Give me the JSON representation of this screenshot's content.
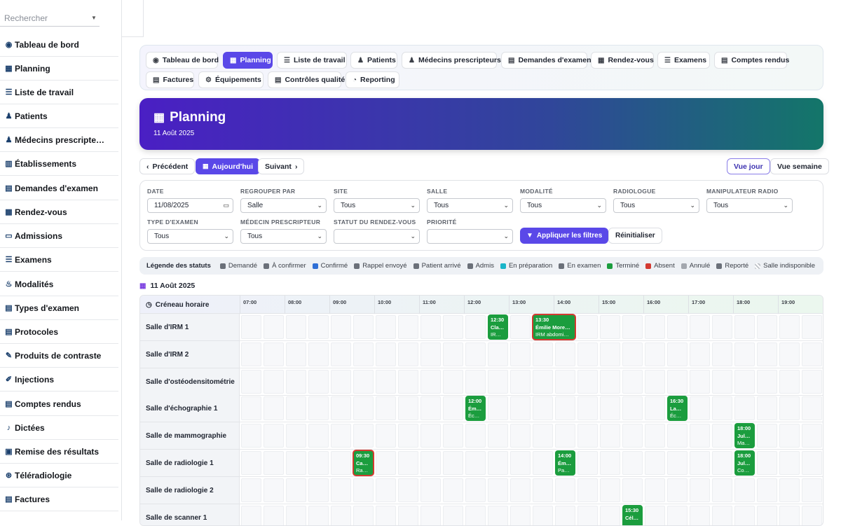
{
  "search": {
    "placeholder": "Rechercher"
  },
  "sidebar": {
    "items": [
      {
        "label": "Tableau de bord",
        "icon": "dashboard-icon",
        "glyph": "◉"
      },
      {
        "label": "Planning",
        "icon": "calendar-icon",
        "glyph": "▦"
      },
      {
        "label": "Liste de travail",
        "icon": "list-icon",
        "glyph": "☰"
      },
      {
        "label": "Patients",
        "icon": "patient-icon",
        "glyph": "♟"
      },
      {
        "label": "Médecins prescripte…",
        "icon": "doctors-icon",
        "glyph": "♟"
      },
      {
        "label": "Établissements",
        "icon": "building-icon",
        "glyph": "▥"
      },
      {
        "label": "Demandes d'examen",
        "icon": "request-icon",
        "glyph": "▤"
      },
      {
        "label": "Rendez-vous",
        "icon": "appointment-icon",
        "glyph": "▦"
      },
      {
        "label": "Admissions",
        "icon": "id-card-icon",
        "glyph": "▭"
      },
      {
        "label": "Examens",
        "icon": "exam-icon",
        "glyph": "☰"
      },
      {
        "label": "Modalités",
        "icon": "modality-icon",
        "glyph": "♨"
      },
      {
        "label": "Types d'examen",
        "icon": "clipboard-icon",
        "glyph": "▤"
      },
      {
        "label": "Protocoles",
        "icon": "protocol-icon",
        "glyph": "▤"
      },
      {
        "label": "Produits de contraste",
        "icon": "eyedropper-icon",
        "glyph": "✎"
      },
      {
        "label": "Injections",
        "icon": "syringe-icon",
        "glyph": "✐"
      },
      {
        "label": "Comptes rendus",
        "icon": "report-icon",
        "glyph": "▤"
      },
      {
        "label": "Dictées",
        "icon": "microphone-icon",
        "glyph": "♪"
      },
      {
        "label": "Remise des résultats",
        "icon": "printer-icon",
        "glyph": "▣"
      },
      {
        "label": "Téléradiologie",
        "icon": "broadcast-icon",
        "glyph": "⊛"
      },
      {
        "label": "Factures",
        "icon": "invoice-icon",
        "glyph": "▤"
      }
    ]
  },
  "nav": {
    "tabs": [
      {
        "label": "Tableau de bord",
        "icon": "dashboard-icon",
        "glyph": "◉"
      },
      {
        "label": "Planning",
        "icon": "calendar-icon",
        "glyph": "▦",
        "active": true
      },
      {
        "label": "Liste de travail",
        "icon": "list-icon",
        "glyph": "☰"
      },
      {
        "label": "Patients",
        "icon": "patient-icon",
        "glyph": "♟"
      },
      {
        "label": "Médecins prescripteurs",
        "icon": "doctors-icon",
        "glyph": "♟"
      },
      {
        "label": "Demandes d'examen",
        "icon": "request-icon",
        "glyph": "▤"
      },
      {
        "label": "Rendez-vous",
        "icon": "appointment-icon",
        "glyph": "▦"
      },
      {
        "label": "Examens",
        "icon": "exam-icon",
        "glyph": "☰"
      },
      {
        "label": "Comptes rendus",
        "icon": "report-icon",
        "glyph": "▤"
      },
      {
        "label": "Factures",
        "icon": "invoice-icon",
        "glyph": "▤"
      },
      {
        "label": "Équipements",
        "icon": "gears-icon",
        "glyph": "⚙"
      },
      {
        "label": "Contrôles qualité",
        "icon": "clipboard-check-icon",
        "glyph": "▤"
      },
      {
        "label": "Reporting",
        "icon": "pie-chart-icon",
        "glyph": "◔"
      }
    ]
  },
  "hero": {
    "title": "Planning",
    "subtitle": "11 Août 2025",
    "gradient_start": "#4a1fc4",
    "gradient_end": "#137669"
  },
  "pager": {
    "prev": "Précédent",
    "today": "Aujourd'hui",
    "next": "Suivant",
    "day_view": "Vue jour",
    "week_view": "Vue semaine"
  },
  "filters": {
    "date": {
      "label": "DATE",
      "value": "11/08/2025"
    },
    "group_by": {
      "label": "REGROUPER PAR",
      "value": "Salle"
    },
    "site": {
      "label": "SITE",
      "value": "Tous"
    },
    "room": {
      "label": "SALLE",
      "value": "Tous"
    },
    "modality": {
      "label": "MODALITÉ",
      "value": "Tous"
    },
    "radiologist": {
      "label": "RADIOLOGUE",
      "value": "Tous"
    },
    "technician": {
      "label": "MANIPULATEUR RADIO",
      "value": "Tous"
    },
    "exam_type": {
      "label": "TYPE D'EXAMEN",
      "value": "Tous"
    },
    "prescriber": {
      "label": "MÉDECIN PRESCRIPTEUR",
      "value": "Tous"
    },
    "status": {
      "label": "STATUT DU RENDEZ-VOUS",
      "value": ""
    },
    "priority": {
      "label": "PRIORITÉ",
      "value": ""
    },
    "apply": "Appliquer les filtres",
    "reset": "Réinitialiser"
  },
  "legend": {
    "title": "Légende des statuts",
    "items": [
      {
        "label": "Demandé",
        "color": "#6b7079"
      },
      {
        "label": "À confirmer",
        "color": "#6b7079"
      },
      {
        "label": "Confirmé",
        "color": "#2f6fd6"
      },
      {
        "label": "Rappel envoyé",
        "color": "#6b7079"
      },
      {
        "label": "Patient arrivé",
        "color": "#6b7079"
      },
      {
        "label": "Admis",
        "color": "#6b7079"
      },
      {
        "label": "En préparation",
        "color": "#19b5c9"
      },
      {
        "label": "En examen",
        "color": "#6b7079"
      },
      {
        "label": "Terminé",
        "color": "#1b9d3e"
      },
      {
        "label": "Absent",
        "color": "#d33a31"
      },
      {
        "label": "Annulé",
        "color": "#a3a7ae"
      },
      {
        "label": "Reporté",
        "color": "#6b7079"
      },
      {
        "label": "Salle indisponible",
        "color": "#cfd2d7"
      }
    ]
  },
  "planning": {
    "date_header": "11 Août 2025",
    "corner": "Créneau horaire",
    "hours": [
      "07:00",
      "08:00",
      "09:00",
      "10:00",
      "11:00",
      "12:00",
      "13:00",
      "14:00",
      "15:00",
      "16:00",
      "17:00",
      "18:00",
      "19:00"
    ],
    "rooms": [
      "Salle d'IRM 1",
      "Salle d'IRM 2",
      "Salle d'ostéodensitométrie",
      "Salle d'échographie 1",
      "Salle de mammographie",
      "Salle de radiologie 1",
      "Salle de radiologie 2",
      "Salle de scanner 1"
    ],
    "appointments": [
      {
        "room": 0,
        "start": 12.5,
        "slots": 1,
        "time": "12:30",
        "name": "Cla…",
        "exam": "IR…",
        "status": "Terminé"
      },
      {
        "room": 0,
        "start": 13.5,
        "slots": 2,
        "time": "13:30",
        "name": "Émilie More…",
        "exam": "IRM abdomi…",
        "status": "Absent"
      },
      {
        "room": 3,
        "start": 12.0,
        "slots": 1,
        "time": "12:00",
        "name": "Ém…",
        "exam": "Éc…",
        "status": "Terminé"
      },
      {
        "room": 3,
        "start": 16.5,
        "slots": 1,
        "time": "16:30",
        "name": "La…",
        "exam": "Éc…",
        "status": "Terminé"
      },
      {
        "room": 4,
        "start": 18.0,
        "slots": 1,
        "time": "18:00",
        "name": "Jul…",
        "exam": "Ma…",
        "status": "Terminé"
      },
      {
        "room": 5,
        "start": 9.5,
        "slots": 1,
        "time": "09:30",
        "name": "Ca…",
        "exam": "Ra…",
        "status": "Absent"
      },
      {
        "room": 5,
        "start": 14.0,
        "slots": 1,
        "time": "14:00",
        "name": "Ém…",
        "exam": "Pa…",
        "status": "Terminé"
      },
      {
        "room": 5,
        "start": 18.0,
        "slots": 1,
        "time": "18:00",
        "name": "Jul…",
        "exam": "Co…",
        "status": "Terminé"
      },
      {
        "room": 7,
        "start": 15.5,
        "slots": 1,
        "time": "15:30",
        "name": "Cél…",
        "exam": "",
        "status": "Terminé"
      }
    ]
  }
}
